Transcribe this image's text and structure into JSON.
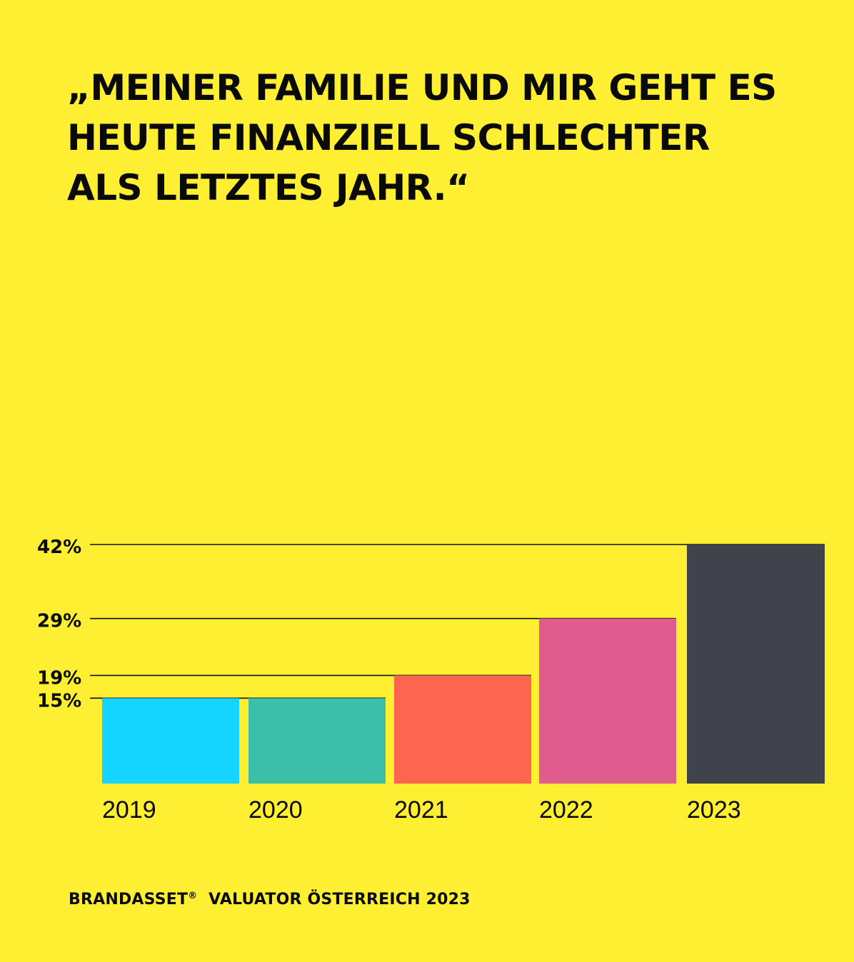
{
  "headline": {
    "line1": "„MEINER FAMILIE UND MIR GEHT ES",
    "line2": "HEUTE FINANZIELL SCHLECHTER",
    "line3": "ALS LETZTES JAHR.“"
  },
  "footer": {
    "brand": "BRANDASSET",
    "registered_mark": "®",
    "rest": "VALUATOR ÖSTERREICH 2023"
  },
  "chart_data": {
    "type": "bar",
    "title": "„MEINER FAMILIE UND MIR GEHT ES HEUTE FINANZIELL SCHLECHTER ALS LETZTES JAHR.“",
    "categories": [
      "2019",
      "2020",
      "2021",
      "2022",
      "2023"
    ],
    "values": [
      15,
      15,
      19,
      29,
      42
    ],
    "value_labels": [
      "15%",
      "15%",
      "19%",
      "29%",
      "42%"
    ],
    "colors": [
      "#15D4FF",
      "#3BBFA9",
      "#FE6550",
      "#E05C8F",
      "#40434B"
    ],
    "ylim": [
      0,
      42
    ],
    "xlabel": "",
    "ylabel": "",
    "unit": "%",
    "grid": false,
    "reference_lines": true,
    "legend": "none"
  }
}
